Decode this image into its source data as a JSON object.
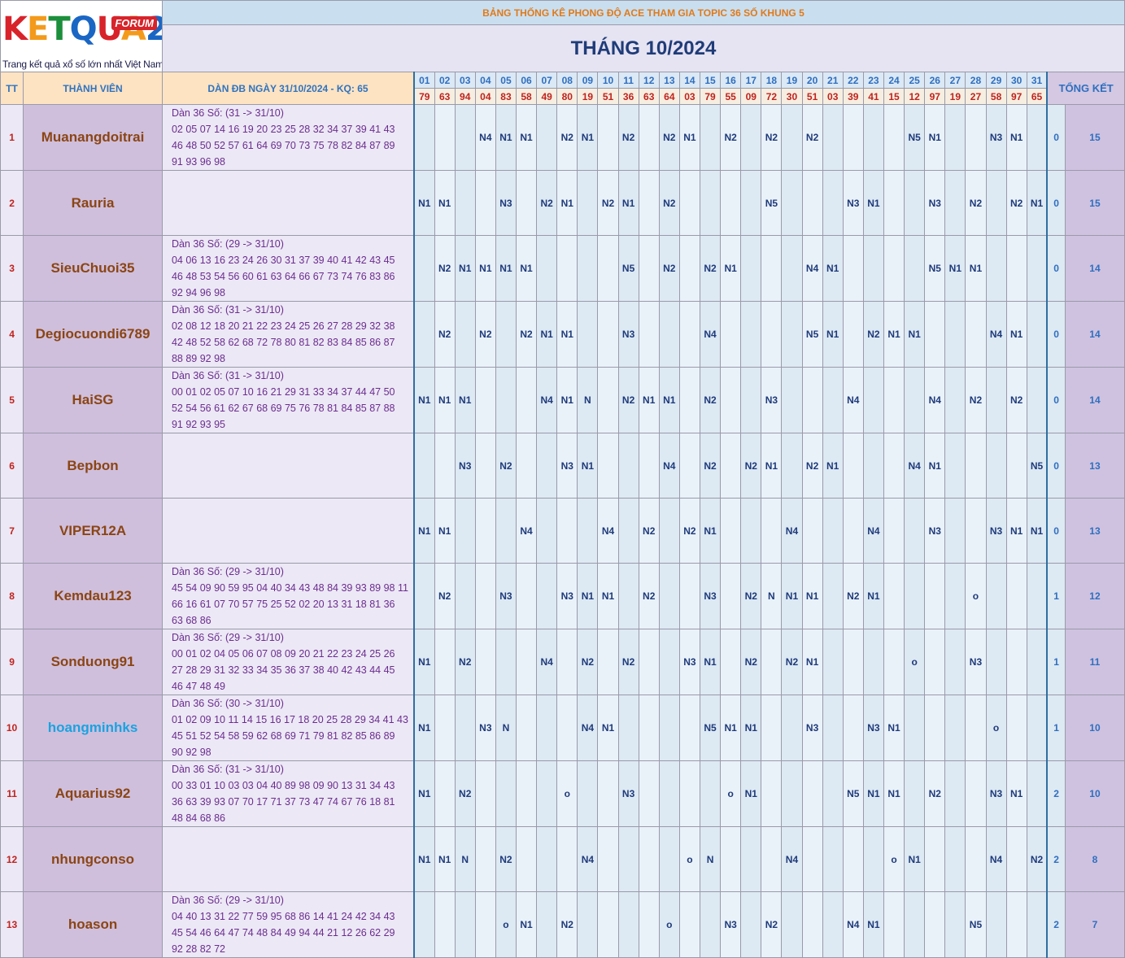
{
  "header": {
    "logo_text": [
      "K",
      "E",
      "T",
      "Q",
      "U",
      "A",
      "2"
    ],
    "logo_badge": "FORUM",
    "logo_tagline": "Trang kết quả xổ số lớn nhất Việt Nam",
    "title": "BẢNG THỐNG KÊ PHONG ĐỘ ACE THAM GIA TOPIC 36 SỐ KHUNG 5",
    "month": "THÁNG 10/2024"
  },
  "columns": {
    "tt": "TT",
    "member": "THÀNH VIÊN",
    "dan": "DÀN ĐB NGÀY 31/10/2024 - KQ: 65",
    "summary": "TỔNG KẾT",
    "days": [
      "01",
      "02",
      "03",
      "04",
      "05",
      "06",
      "07",
      "08",
      "09",
      "10",
      "11",
      "12",
      "13",
      "14",
      "15",
      "16",
      "17",
      "18",
      "19",
      "20",
      "21",
      "22",
      "23",
      "24",
      "25",
      "26",
      "27",
      "28",
      "29",
      "30",
      "31"
    ],
    "results": [
      "79",
      "63",
      "94",
      "04",
      "83",
      "58",
      "49",
      "80",
      "19",
      "51",
      "36",
      "63",
      "64",
      "03",
      "79",
      "55",
      "09",
      "72",
      "30",
      "51",
      "03",
      "39",
      "41",
      "15",
      "12",
      "97",
      "19",
      "27",
      "58",
      "97",
      "65"
    ]
  },
  "rows": [
    {
      "tt": "1",
      "name": "Muanangdoitrai",
      "highlight": false,
      "dan_head": "Dàn 36 Số: (31 -> 31/10)",
      "dan_numbers": "02 05 07 14 16 19 20 23 25 28 32 34 37 39 41 43 46 48 50 52 57 61 64 69 70 73 75 78 82 84 87 89 91 93 96 98",
      "marks": [
        "",
        "",
        "",
        "N4",
        "N1",
        "N1",
        "",
        "N2",
        "N1",
        "",
        "N2",
        "",
        "N2",
        "N1",
        "",
        "N2",
        "",
        "N2",
        "",
        "N2",
        "",
        "",
        "",
        "",
        "N5",
        "N1",
        "",
        "",
        "N3",
        "N1",
        ""
      ],
      "a": "0",
      "b": "15"
    },
    {
      "tt": "2",
      "name": "Rauria",
      "highlight": false,
      "dan_head": "",
      "dan_numbers": "",
      "marks": [
        "N1",
        "N1",
        "",
        "",
        "N3",
        "",
        "N2",
        "N1",
        "",
        "N2",
        "N1",
        "",
        "N2",
        "",
        "",
        "",
        "",
        "N5",
        "",
        "",
        "",
        "N3",
        "N1",
        "",
        "",
        "N3",
        "",
        "N2",
        "",
        "N2",
        "N1"
      ],
      "a": "0",
      "b": "15"
    },
    {
      "tt": "3",
      "name": "SieuChuoi35",
      "highlight": false,
      "dan_head": "Dàn 36 Số: (29 -> 31/10)",
      "dan_numbers": "04 06 13 16 23 24 26 30 31 37 39 40 41 42 43 45 46 48 53 54 56 60 61 63 64 66 67 73 74 76 83 86 92 94 96 98",
      "marks": [
        "",
        "N2",
        "N1",
        "N1",
        "N1",
        "N1",
        "",
        "",
        "",
        "",
        "N5",
        "",
        "N2",
        "",
        "N2",
        "N1",
        "",
        "",
        "",
        "N4",
        "N1",
        "",
        "",
        "",
        "",
        "N5",
        "N1",
        "N1",
        "",
        "",
        ""
      ],
      "a": "0",
      "b": "14"
    },
    {
      "tt": "4",
      "name": "Degiocuondi6789",
      "highlight": false,
      "dan_head": "Dàn 36 Số: (31 -> 31/10)",
      "dan_numbers": "02 08 12 18 20 21 22 23 24 25 26 27 28 29 32 38 42 48 52 58 62 68 72 78 80 81 82 83 84 85 86 87 88 89 92 98",
      "marks": [
        "",
        "N2",
        "",
        "N2",
        "",
        "N2",
        "N1",
        "N1",
        "",
        "",
        "N3",
        "",
        "",
        "",
        "N4",
        "",
        "",
        "",
        "",
        "N5",
        "N1",
        "",
        "N2",
        "N1",
        "N1",
        "",
        "",
        "",
        "N4",
        "N1",
        ""
      ],
      "a": "0",
      "b": "14"
    },
    {
      "tt": "5",
      "name": "HaiSG",
      "highlight": false,
      "dan_head": "Dàn 36 Số: (31 -> 31/10)",
      "dan_numbers": "00 01 02 05 07 10 16 21 29 31 33 34 37 44 47 50 52 54 56 61 62 67 68 69 75 76 78 81 84 85 87 88 91 92 93 95",
      "marks": [
        "N1",
        "N1",
        "N1",
        "",
        "",
        "",
        "N4",
        "N1",
        "N",
        "",
        "N2",
        "N1",
        "N1",
        "",
        "N2",
        "",
        "",
        "N3",
        "",
        "",
        "",
        "N4",
        "",
        "",
        "",
        "N4",
        "",
        "N2",
        "",
        "N2",
        ""
      ],
      "a": "0",
      "b": "14"
    },
    {
      "tt": "6",
      "name": "Bepbon",
      "highlight": false,
      "dan_head": "",
      "dan_numbers": "",
      "marks": [
        "",
        "",
        "N3",
        "",
        "N2",
        "",
        "",
        "N3",
        "N1",
        "",
        "",
        "",
        "N4",
        "",
        "N2",
        "",
        "N2",
        "N1",
        "",
        "N2",
        "N1",
        "",
        "",
        "",
        "N4",
        "N1",
        "",
        "",
        "",
        "",
        "N5"
      ],
      "a": "0",
      "b": "13"
    },
    {
      "tt": "7",
      "name": "VIPER12A",
      "highlight": false,
      "dan_head": "",
      "dan_numbers": "",
      "marks": [
        "N1",
        "N1",
        "",
        "",
        "",
        "N4",
        "",
        "",
        "",
        "N4",
        "",
        "N2",
        "",
        "N2",
        "N1",
        "",
        "",
        "",
        "N4",
        "",
        "",
        "",
        "N4",
        "",
        "",
        "N3",
        "",
        "",
        "N3",
        "N1",
        "N1"
      ],
      "a": "0",
      "b": "13"
    },
    {
      "tt": "8",
      "name": "Kemdau123",
      "highlight": false,
      "dan_head": "Dàn 36 Số: (29 -> 31/10)",
      "dan_numbers": "45 54 09 90 59 95 04 40 34 43 48 84 39 93 89 98 11 66 16 61 07 70 57 75 25 52 02 20 13 31 18 81 36 63 68 86",
      "marks": [
        "",
        "N2",
        "",
        "",
        "N3",
        "",
        "",
        "N3",
        "N1",
        "N1",
        "",
        "N2",
        "",
        "",
        "N3",
        "",
        "N2",
        "N",
        "N1",
        "N1",
        "",
        "N2",
        "N1",
        "",
        "",
        "",
        "",
        "o",
        "",
        "",
        ""
      ],
      "a": "1",
      "b": "12"
    },
    {
      "tt": "9",
      "name": "Sonduong91",
      "highlight": false,
      "dan_head": "Dàn 36 Số: (29 -> 31/10)",
      "dan_numbers": "00 01 02 04 05 06 07 08 09 20 21 22 23 24 25 26 27 28 29 31 32 33 34 35 36 37 38 40 42 43 44 45 46 47 48 49",
      "marks": [
        "N1",
        "",
        "N2",
        "",
        "",
        "",
        "N4",
        "",
        "N2",
        "",
        "N2",
        "",
        "",
        "N3",
        "N1",
        "",
        "N2",
        "",
        "N2",
        "N1",
        "",
        "",
        "",
        "",
        "o",
        "",
        "",
        "N3",
        "",
        "",
        ""
      ],
      "a": "1",
      "b": "11"
    },
    {
      "tt": "10",
      "name": "hoangminhks",
      "highlight": true,
      "dan_head": "Dàn 36 Số: (30 -> 31/10)",
      "dan_numbers": "01 02 09 10 11 14 15 16 17 18 20 25 28 29 34 41 43 45 51 52 54 58 59 62 68 69 71 79 81 82 85 86 89 90 92 98",
      "marks": [
        "N1",
        "",
        "",
        "N3",
        "N",
        "",
        "",
        "",
        "N4",
        "N1",
        "",
        "",
        "",
        "",
        "N5",
        "N1",
        "N1",
        "",
        "",
        "N3",
        "",
        "",
        "N3",
        "N1",
        "",
        "",
        "",
        "",
        "o",
        "",
        ""
      ],
      "a": "1",
      "b": "10"
    },
    {
      "tt": "11",
      "name": "Aquarius92",
      "highlight": false,
      "dan_head": "Dàn 36 Số: (31 -> 31/10)",
      "dan_numbers": "00 33 01 10 03 03 04 40 89 98 09 90 13 31 34 43 36 63 39 93 07 70 17 71 37 73 47 74 67 76 18 81 48 84 68 86",
      "marks": [
        "N1",
        "",
        "N2",
        "",
        "",
        "",
        "",
        "o",
        "",
        "",
        "N3",
        "",
        "",
        "",
        "",
        "o",
        "N1",
        "",
        "",
        "",
        "",
        "N5",
        "N1",
        "N1",
        "",
        "N2",
        "",
        "",
        "N3",
        "N1",
        ""
      ],
      "a": "2",
      "b": "10"
    },
    {
      "tt": "12",
      "name": "nhungconso",
      "highlight": false,
      "dan_head": "",
      "dan_numbers": "",
      "marks": [
        "N1",
        "N1",
        "N",
        "",
        "N2",
        "",
        "",
        "",
        "N4",
        "",
        "",
        "",
        "",
        "o",
        "N",
        "",
        "",
        "",
        "N4",
        "",
        "",
        "",
        "",
        "o",
        "N1",
        "",
        "",
        "",
        "N4",
        "",
        "N2"
      ],
      "a": "2",
      "b": "8"
    },
    {
      "tt": "13",
      "name": "hoason",
      "highlight": false,
      "dan_head": "Dàn 36 Số: (29 -> 31/10)",
      "dan_numbers": "04 40 13 31 22 77 59 95 68 86 14 41 24 42 34 43 45 54 46 64 47 74 48 84 49 94 44 21 12 26 62 29 92 28 82 72",
      "marks": [
        "",
        "",
        "",
        "",
        "o",
        "N1",
        "",
        "N2",
        "",
        "",
        "",
        "",
        "o",
        "",
        "",
        "N3",
        "",
        "N2",
        "",
        "",
        "",
        "N4",
        "N1",
        "",
        "",
        "",
        "",
        "N5",
        "",
        "",
        ""
      ],
      "a": "2",
      "b": "7"
    }
  ]
}
